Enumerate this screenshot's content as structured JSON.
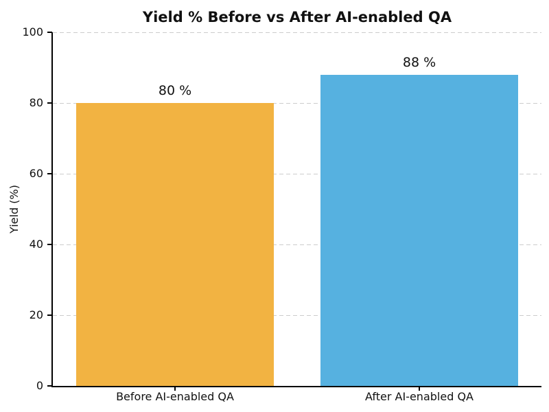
{
  "chart_data": {
    "type": "bar",
    "title": "Yield % Before vs After AI-enabled QA",
    "categories": [
      "Before AI-enabled QA",
      "After AI-enabled QA"
    ],
    "values": [
      80,
      88
    ],
    "bar_labels": [
      "80 %",
      "88 %"
    ],
    "bar_colors": [
      "#F2B342",
      "#56B1E0"
    ],
    "xlabel": "",
    "ylabel": "Yield (%)",
    "ylim": [
      0,
      100
    ],
    "yticks": [
      0,
      20,
      40,
      60,
      80,
      100
    ],
    "grid": "horizontal-dashed",
    "grid_color": "#cccccc",
    "axis_color": "#000000",
    "text_color": "#111111",
    "background": "#ffffff",
    "legend": "none"
  }
}
